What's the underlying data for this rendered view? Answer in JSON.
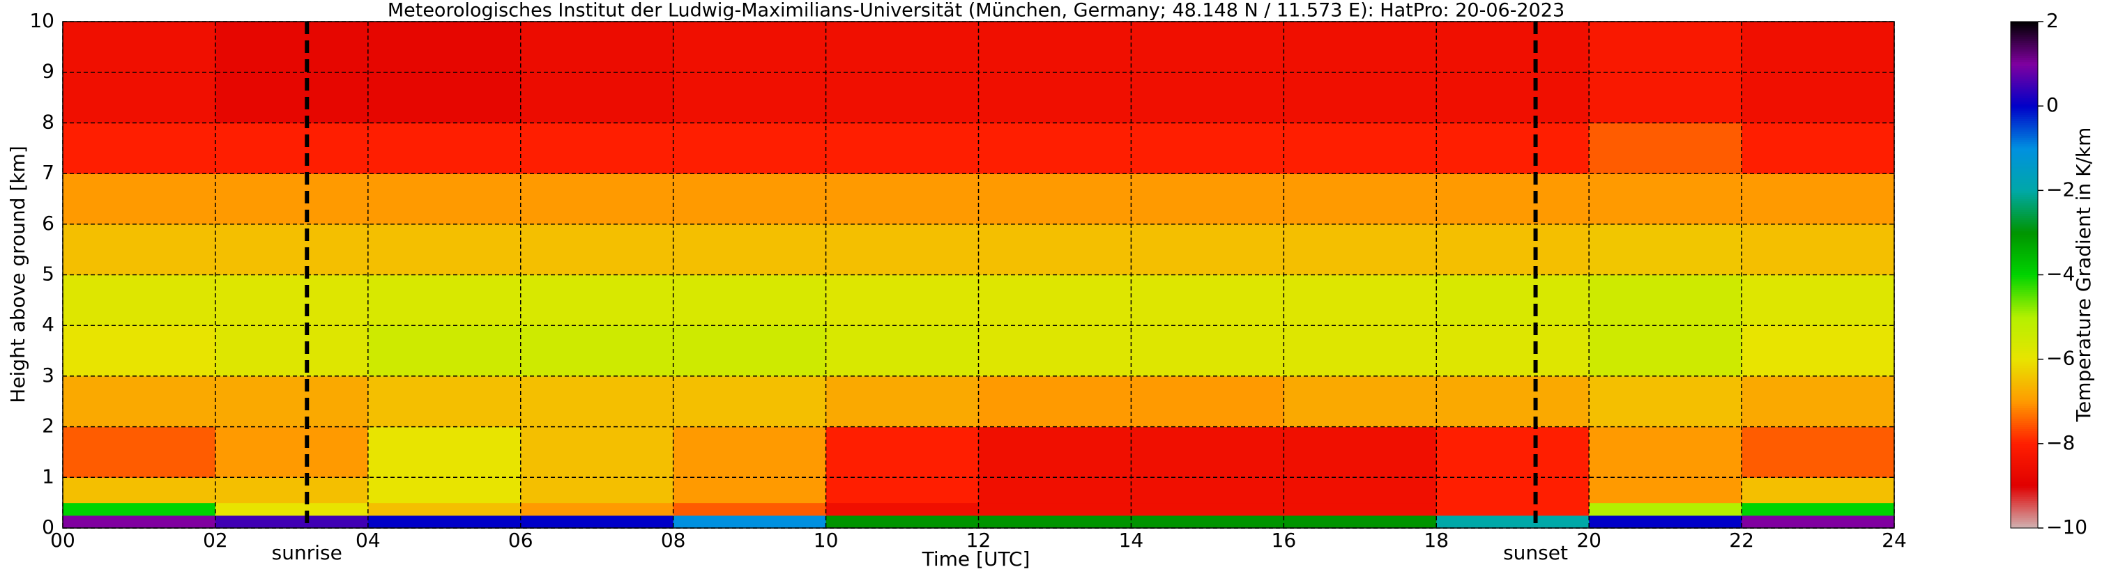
{
  "chart_data": {
    "type": "heatmap",
    "title": "Meteorologisches Institut der Ludwig-Maximilians-Universität (München, Germany; 48.148 N / 11.573 E):    HatPro: 20-06-2023",
    "x_label": "Time [UTC]",
    "y_label": "Height above ground [km]",
    "colorbar_label": "Temperature Gradient in K/km",
    "x_edges": [
      0,
      2,
      4,
      6,
      8,
      10,
      12,
      14,
      16,
      18,
      20,
      22,
      24
    ],
    "y_edges": [
      0,
      0.25,
      0.5,
      1,
      2,
      3,
      4,
      5,
      6,
      7,
      8,
      10
    ],
    "z": [
      [
        1,
        0.5,
        0,
        0,
        -1,
        -3,
        -3,
        -3,
        -3,
        -2,
        0,
        1
      ],
      [
        -4,
        -6,
        -6.5,
        -7,
        -7.5,
        -8.5,
        -8.5,
        -8.5,
        -8.5,
        -8,
        -5,
        -4
      ],
      [
        -6.5,
        -6.5,
        -6,
        -6.5,
        -7,
        -8,
        -8.5,
        -8.5,
        -8.5,
        -8,
        -7,
        -6.5
      ],
      [
        -7.5,
        -7,
        -6,
        -6.5,
        -7,
        -8,
        -8.5,
        -8.5,
        -8.5,
        -8,
        -7,
        -7.5
      ],
      [
        -6.8,
        -6.8,
        -6.5,
        -6.5,
        -6.5,
        -6.8,
        -7,
        -7,
        -6.8,
        -6.8,
        -6.5,
        -6.8
      ],
      [
        -6,
        -5.8,
        -5.5,
        -5.5,
        -5.5,
        -5.7,
        -5.8,
        -5.8,
        -5.8,
        -5.8,
        -5.5,
        -6
      ],
      [
        -5.8,
        -5.8,
        -5.7,
        -5.7,
        -5.7,
        -5.8,
        -5.8,
        -5.8,
        -5.8,
        -5.7,
        -5.5,
        -5.8
      ],
      [
        -6.5,
        -6.5,
        -6.5,
        -6.5,
        -6.5,
        -6.5,
        -6.5,
        -6.5,
        -6.5,
        -6.5,
        -6.4,
        -6.5
      ],
      [
        -7,
        -7,
        -7,
        -7,
        -7,
        -7,
        -7,
        -7,
        -7,
        -7,
        -7,
        -7
      ],
      [
        -8,
        -8,
        -8,
        -8,
        -8,
        -8,
        -8,
        -8,
        -8,
        -8,
        -7.5,
        -8
      ],
      [
        -8.5,
        -8.8,
        -8.8,
        -8.6,
        -8.5,
        -8.5,
        -8.5,
        -8.5,
        -8.5,
        -8.5,
        -8.2,
        -8.5
      ]
    ],
    "xlim": [
      0,
      24
    ],
    "ylim": [
      0,
      10
    ],
    "zlim": [
      -10,
      2
    ],
    "colors": [
      "#d0b4b4",
      "#e00000",
      "#ff1e00",
      "#ff9a00",
      "#e8e400",
      "#b4f000",
      "#00d400",
      "#009400",
      "#00a8a8",
      "#0090e0",
      "#0000c8",
      "#8000a0",
      "#000000"
    ],
    "xticks": [
      {
        "value": 0,
        "label": "00"
      },
      {
        "value": 2,
        "label": "02"
      },
      {
        "value": 4,
        "label": "04"
      },
      {
        "value": 6,
        "label": "06"
      },
      {
        "value": 8,
        "label": "08"
      },
      10,
      12,
      14,
      16,
      18,
      20,
      22,
      24
    ],
    "yticks": [
      0,
      1,
      2,
      3,
      4,
      5,
      6,
      7,
      8,
      9,
      10
    ],
    "cticks": [
      {
        "value": -10,
        "label": "−10"
      },
      {
        "value": -8,
        "label": "−8"
      },
      {
        "value": -6,
        "label": "−6"
      },
      {
        "value": -4,
        "label": "−4"
      },
      {
        "value": -2,
        "label": "−2"
      },
      0,
      2
    ],
    "grid": true,
    "markers": [
      {
        "label": "sunrise",
        "x": 3.2
      },
      {
        "label": "sunset",
        "x": 19.3
      }
    ]
  }
}
